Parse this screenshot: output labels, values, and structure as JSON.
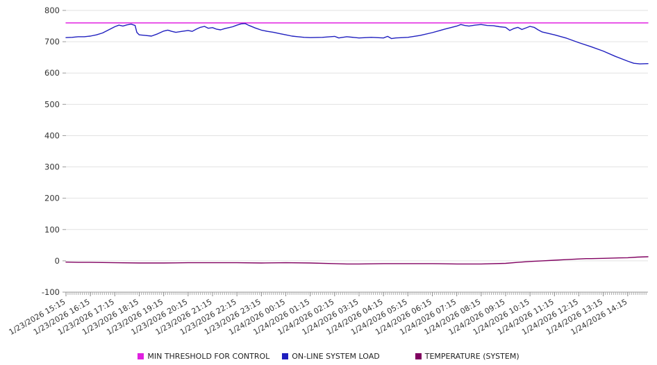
{
  "chart_data": {
    "type": "line",
    "title": "",
    "xlabel": "",
    "ylabel": "",
    "ylim": [
      -100,
      800
    ],
    "y_tick_step": 100,
    "grid": "horizontal",
    "legend_position": "bottom-center",
    "x_tick_labels": [
      "1/23/2026 15:15",
      "1/23/2026 16:15",
      "1/23/2026 17:15",
      "1/23/2026 18:15",
      "1/23/2026 19:15",
      "1/23/2026 20:15",
      "1/23/2026 21:15",
      "1/23/2026 22:15",
      "1/23/2026 23:15",
      "1/24/2026 00:15",
      "1/24/2026 01:15",
      "1/24/2026 02:15",
      "1/24/2026 03:15",
      "1/24/2026 04:15",
      "1/24/2026 05:15",
      "1/24/2026 06:15",
      "1/24/2026 07:15",
      "1/24/2026 08:15",
      "1/24/2026 09:15",
      "1/24/2026 10:15",
      "1/24/2026 11:15",
      "1/24/2026 12:15",
      "1/24/2026 13:15",
      "1/24/2026 14:15"
    ],
    "x_hours_max": 23.83,
    "series": [
      {
        "name": "MIN THRESHOLD FOR CONTROL",
        "color": "#e020e0",
        "points": [
          [
            0,
            760
          ],
          [
            23.83,
            760
          ]
        ]
      },
      {
        "name": "ON-LINE SYSTEM LOAD",
        "color": "#1f1fbf",
        "points": [
          [
            0,
            713
          ],
          [
            0.25,
            714
          ],
          [
            0.5,
            716
          ],
          [
            0.75,
            716
          ],
          [
            1,
            718
          ],
          [
            1.25,
            722
          ],
          [
            1.5,
            728
          ],
          [
            1.75,
            738
          ],
          [
            2,
            748
          ],
          [
            2.17,
            753
          ],
          [
            2.33,
            750
          ],
          [
            2.5,
            754
          ],
          [
            2.67,
            756
          ],
          [
            2.83,
            752
          ],
          [
            2.9,
            730
          ],
          [
            3,
            722
          ],
          [
            3.25,
            720
          ],
          [
            3.5,
            718
          ],
          [
            3.75,
            725
          ],
          [
            4,
            734
          ],
          [
            4.17,
            737
          ],
          [
            4.33,
            733
          ],
          [
            4.5,
            730
          ],
          [
            4.75,
            733
          ],
          [
            5,
            736
          ],
          [
            5.17,
            733
          ],
          [
            5.33,
            740
          ],
          [
            5.5,
            746
          ],
          [
            5.67,
            749
          ],
          [
            5.83,
            743
          ],
          [
            6,
            745
          ],
          [
            6.17,
            740
          ],
          [
            6.33,
            738
          ],
          [
            6.5,
            742
          ],
          [
            6.67,
            745
          ],
          [
            6.83,
            748
          ],
          [
            7,
            753
          ],
          [
            7.17,
            757
          ],
          [
            7.33,
            758
          ],
          [
            7.5,
            752
          ],
          [
            7.75,
            744
          ],
          [
            8,
            737
          ],
          [
            8.25,
            733
          ],
          [
            8.5,
            730
          ],
          [
            8.75,
            726
          ],
          [
            9,
            722
          ],
          [
            9.25,
            718
          ],
          [
            9.5,
            716
          ],
          [
            9.75,
            714
          ],
          [
            10,
            713
          ],
          [
            10.5,
            714
          ],
          [
            11,
            717
          ],
          [
            11.17,
            712
          ],
          [
            11.33,
            714
          ],
          [
            11.5,
            716
          ],
          [
            12,
            712
          ],
          [
            12.5,
            714
          ],
          [
            13,
            712
          ],
          [
            13.17,
            717
          ],
          [
            13.33,
            710
          ],
          [
            13.5,
            712
          ],
          [
            14,
            714
          ],
          [
            14.5,
            720
          ],
          [
            15,
            729
          ],
          [
            15.5,
            740
          ],
          [
            16,
            750
          ],
          [
            16.17,
            755
          ],
          [
            16.33,
            752
          ],
          [
            16.5,
            750
          ],
          [
            16.75,
            753
          ],
          [
            17,
            755
          ],
          [
            17.25,
            752
          ],
          [
            17.5,
            751
          ],
          [
            17.75,
            748
          ],
          [
            18,
            746
          ],
          [
            18.17,
            736
          ],
          [
            18.33,
            742
          ],
          [
            18.5,
            746
          ],
          [
            18.67,
            739
          ],
          [
            19,
            749
          ],
          [
            19.17,
            746
          ],
          [
            19.33,
            738
          ],
          [
            19.5,
            731
          ],
          [
            20,
            722
          ],
          [
            20.5,
            711
          ],
          [
            21,
            697
          ],
          [
            21.5,
            684
          ],
          [
            22,
            670
          ],
          [
            22.5,
            653
          ],
          [
            23,
            638
          ],
          [
            23.25,
            631
          ],
          [
            23.5,
            629
          ],
          [
            23.83,
            630
          ]
        ]
      },
      {
        "name": "TEMPERATURE (SYSTEM)",
        "color": "#800060",
        "points": [
          [
            0,
            -4
          ],
          [
            0.5,
            -5
          ],
          [
            1,
            -5
          ],
          [
            2,
            -6
          ],
          [
            3,
            -7
          ],
          [
            4,
            -7
          ],
          [
            5,
            -6
          ],
          [
            6,
            -6
          ],
          [
            7,
            -6
          ],
          [
            8,
            -7
          ],
          [
            9,
            -6
          ],
          [
            10,
            -7
          ],
          [
            11,
            -9
          ],
          [
            11.5,
            -10
          ],
          [
            12,
            -10
          ],
          [
            13,
            -9
          ],
          [
            14,
            -9
          ],
          [
            15,
            -9
          ],
          [
            16,
            -10
          ],
          [
            17,
            -10
          ],
          [
            18,
            -8
          ],
          [
            18.5,
            -5
          ],
          [
            19,
            -2
          ],
          [
            19.5,
            0
          ],
          [
            20,
            2
          ],
          [
            20.5,
            4
          ],
          [
            21,
            6
          ],
          [
            21.3,
            7
          ],
          [
            21.5,
            7
          ],
          [
            22,
            8
          ],
          [
            22.5,
            9
          ],
          [
            23,
            10
          ],
          [
            23.4,
            12
          ],
          [
            23.83,
            13
          ]
        ]
      }
    ]
  }
}
